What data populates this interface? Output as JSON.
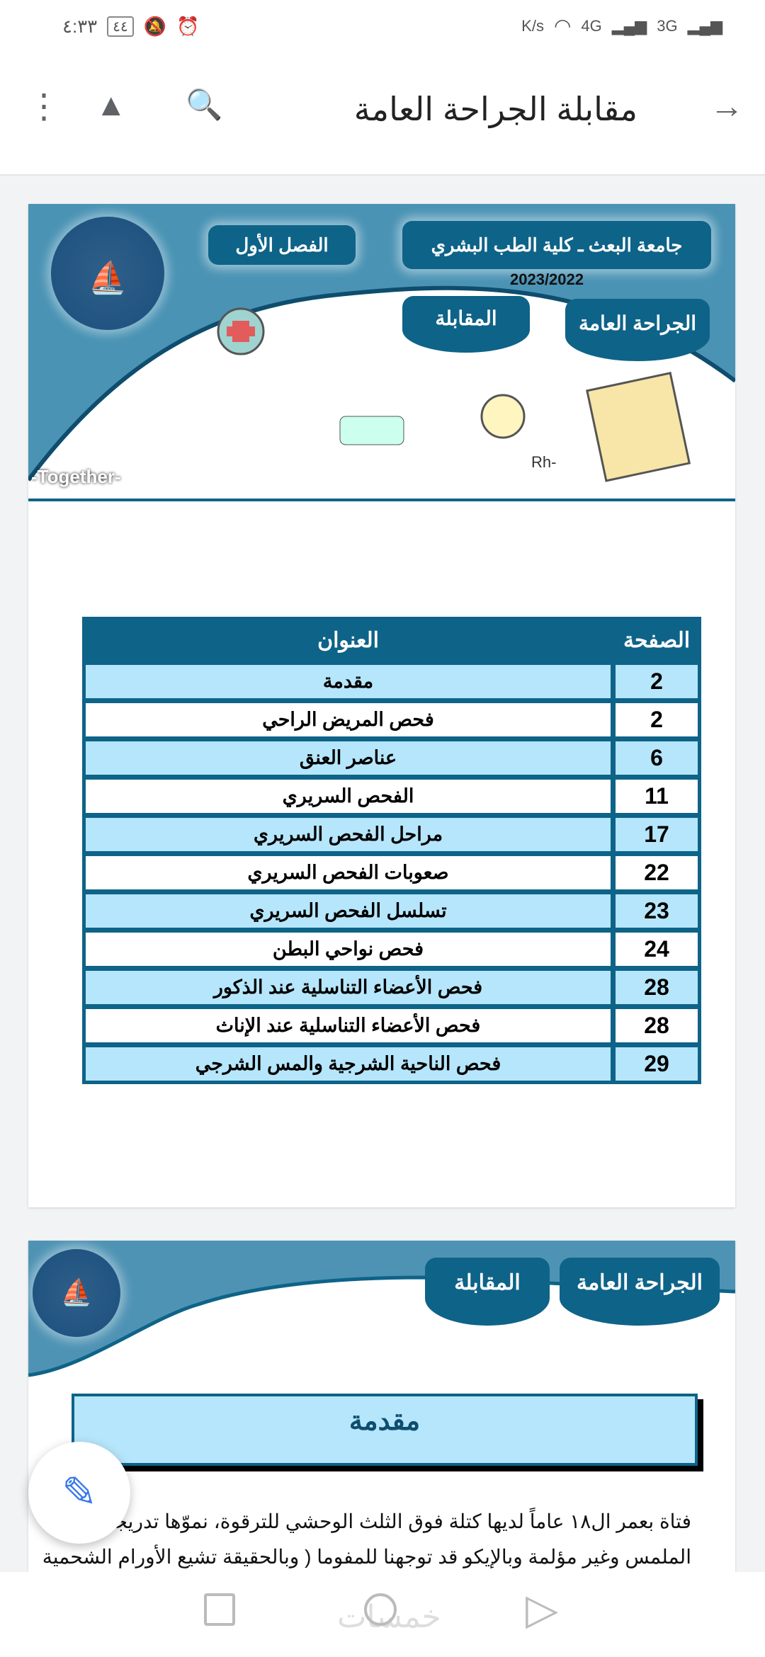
{
  "status_bar": {
    "time": "٤:٣٣",
    "battery": "٤٤",
    "net_speed": "K/s",
    "sim1": "4G",
    "sim2": "3G"
  },
  "toolbar": {
    "title": "مقابلة الجراحة العامة",
    "back_icon": "arrow-forward-icon",
    "search_icon": "find-in-document-icon",
    "drive_icon": "add-to-drive-icon",
    "menu_icon": "more-vert-icon"
  },
  "page1": {
    "banner": {
      "university": "جامعة البعث ـ كلية الطب البشري",
      "semester": "الفصل الأول",
      "year": "2023/2022",
      "subject": "الجراحة العامة",
      "topic": "المقابلة",
      "logo_text": "TOGETHER",
      "tagline": "-Together-",
      "label_rh": "Rh-"
    },
    "toc": {
      "headers": {
        "page": "الصفحة",
        "title": "العنوان"
      },
      "rows": [
        {
          "page": "2",
          "title": "مقدمة"
        },
        {
          "page": "2",
          "title": "فحص المريض الراحي"
        },
        {
          "page": "6",
          "title": "عناصر العنق"
        },
        {
          "page": "11",
          "title": "الفحص السريري"
        },
        {
          "page": "17",
          "title": "مراحل الفحص السريري"
        },
        {
          "page": "22",
          "title": "صعوبات الفحص السريري"
        },
        {
          "page": "23",
          "title": "تسلسل الفحص السريري"
        },
        {
          "page": "24",
          "title": "فحص نواحي البطن"
        },
        {
          "page": "28",
          "title": "فحص الأعضاء التناسلية عند الذكور"
        },
        {
          "page": "28",
          "title": "فحص الأعضاء التناسلية عند الإناث"
        },
        {
          "page": "29",
          "title": "فحص الناحية الشرجية والمس الشرجي"
        }
      ]
    }
  },
  "page2": {
    "subject": "الجراحة العامة",
    "topic": "المقابلة",
    "heading": "مقدمة",
    "lines": [
      "فتاة بعمر ال١٨ عاماً لديها كتلة فوق الثلث الوحشي للترقوة، نموّها تدريجي طرية",
      "الملمس وغير مؤلمة وبالإيكو قد توجهنا للمفوما ( وبالحقيقة تشيع الأورام الشحمية"
    ]
  },
  "fab": {
    "icon": "edit-pencil-icon"
  },
  "nav": {
    "watermark": "خمسات"
  },
  "colors": {
    "brand": "#0e6388",
    "row_alt": "#b6e6fb",
    "fab_icon": "#3b7ae8"
  }
}
